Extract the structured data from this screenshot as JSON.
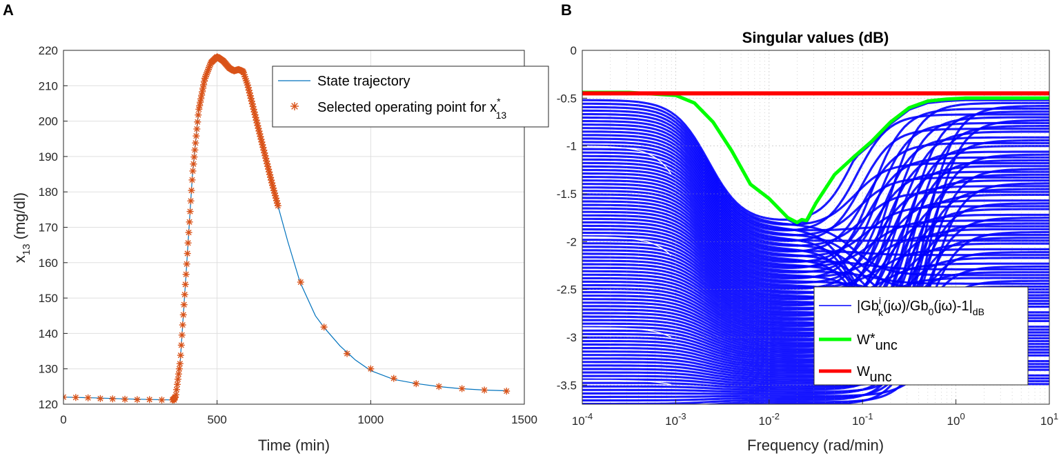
{
  "colors": {
    "trajectory": "#0072BD",
    "operating_point": "#D95319",
    "blue_family": "#0000FF",
    "w_star": "#00FF00",
    "w_unc": "#FF0000",
    "grid": "#DFDFDF",
    "axis": "#262626"
  },
  "chart_data": [
    {
      "panel_label": "A",
      "type": "line",
      "title": "",
      "xlabel": "Time (min)",
      "ylabel": {
        "base": "x",
        "sub": "13",
        "rest": " (mg/dl)"
      },
      "xlim": [
        0,
        1500
      ],
      "ylim": [
        120,
        220
      ],
      "xticks": [
        0,
        500,
        1000,
        1500
      ],
      "xtick_labels": [
        "0",
        "500",
        "1000",
        "1500"
      ],
      "yticks": [
        120,
        130,
        140,
        150,
        160,
        170,
        180,
        190,
        200,
        210,
        220
      ],
      "ytick_labels": [
        "120",
        "130",
        "140",
        "150",
        "160",
        "170",
        "180",
        "190",
        "200",
        "210",
        "220"
      ],
      "grid": true,
      "legend_position": "top-right",
      "series": [
        {
          "name": "State trajectory",
          "kind": "line",
          "x": [
            0,
            100,
            200,
            300,
            355,
            365,
            380,
            400,
            420,
            440,
            460,
            480,
            500,
            520,
            540,
            555,
            570,
            585,
            600,
            620,
            640,
            660,
            680,
            700,
            730,
            770,
            820,
            850,
            900,
            950,
            1000,
            1075,
            1150,
            1220,
            1290,
            1370,
            1440
          ],
          "y": [
            122,
            121.8,
            121.5,
            121.3,
            121.2,
            122,
            132,
            158,
            185,
            203,
            212,
            216.5,
            218.2,
            217,
            215,
            214.2,
            214.6,
            214,
            210,
            203,
            196,
            189,
            182,
            175.5,
            166,
            154.5,
            145,
            141.5,
            136.5,
            132.5,
            129.5,
            127,
            125.8,
            125,
            124.4,
            124,
            123.8
          ]
        },
        {
          "name": "Selected operating point for x",
          "name_sup": "*",
          "name_sub": "13",
          "kind": "marker",
          "marker": "asterisk",
          "x": [
            0,
            40,
            80,
            120,
            160,
            200,
            240,
            280,
            320,
            360,
            772,
            848,
            923,
            1000,
            1075,
            1148,
            1222,
            1297,
            1370,
            1442
          ],
          "y": [
            122,
            121.9,
            121.8,
            121.6,
            121.5,
            121.4,
            121.3,
            121.3,
            121.2,
            121.2,
            154.5,
            141.8,
            134.3,
            130,
            127.3,
            125.8,
            125,
            124.4,
            124,
            123.7
          ],
          "dense_range": [
            355,
            700
          ]
        }
      ]
    },
    {
      "panel_label": "B",
      "type": "line",
      "title": "Singular values (dB)",
      "xlabel": "Frequency (rad/min)",
      "xscale": "log",
      "xlim": [
        0.0001,
        10
      ],
      "ylim": [
        -3.7,
        0
      ],
      "xtick_exponents": [
        "-4",
        "-3",
        "-2",
        "-1",
        "0",
        "1"
      ],
      "xtick_base": "10",
      "yticks": [
        0,
        -0.5,
        -1,
        -1.5,
        -2,
        -2.5,
        -3,
        -3.5
      ],
      "ytick_labels": [
        "0",
        "-0.5",
        "-1",
        "-1.5",
        "-2",
        "-2.5",
        "-3",
        "-3.5"
      ],
      "grid": true,
      "legend_position": "bottom-right",
      "legend": {
        "blue": {
          "pre": "|Gb",
          "sup": "i",
          "sub": "k",
          "mid": "(jω)/Gb",
          "sub2": "0",
          "post": "(jω)-1|",
          "sub3": "dB"
        },
        "green": {
          "base": "W",
          "sup": "*",
          "sub": "unc"
        },
        "red": {
          "base": "W",
          "sub": "unc"
        }
      },
      "series": [
        {
          "name": "W*unc",
          "color": "#00FF00",
          "log10_x": [
            -4,
            -3.5,
            -3,
            -2.8,
            -2.6,
            -2.4,
            -2.2,
            -2.0,
            -1.8,
            -1.7,
            -1.65,
            -1.6,
            -1.5,
            -1.3,
            -1.1,
            -0.9,
            -0.7,
            -0.5,
            -0.3,
            -0.1,
            0.1,
            0.5,
            1
          ],
          "y": [
            -0.44,
            -0.44,
            -0.47,
            -0.55,
            -0.75,
            -1.05,
            -1.4,
            -1.55,
            -1.75,
            -1.8,
            -1.77,
            -1.78,
            -1.6,
            -1.3,
            -1.12,
            -0.95,
            -0.75,
            -0.6,
            -0.53,
            -0.51,
            -0.5,
            -0.5,
            -0.5
          ]
        },
        {
          "name": "Wunc",
          "color": "#FF0000",
          "log10_x": [
            -4,
            1
          ],
          "y": [
            -0.45,
            -0.45
          ]
        }
      ]
    }
  ]
}
